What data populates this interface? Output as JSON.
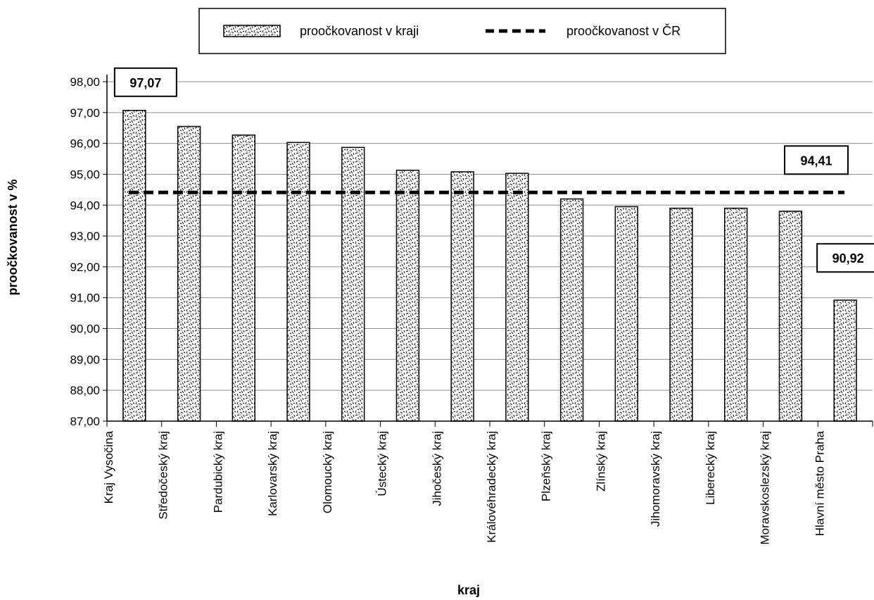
{
  "chart_data": {
    "type": "bar",
    "title": "",
    "xlabel": "kraj",
    "ylabel": "proočkovanost v %",
    "ylim": [
      87,
      98
    ],
    "ytick_step": 1,
    "ytick_format": "comma-2dp",
    "grid": true,
    "legend_position": "top-center",
    "categories": [
      "Kraj Vysočina",
      "Středočeský kraj",
      "Pardubický kraj",
      "Karlovarský kraj",
      "Olomoucký kraj",
      "Ústecký kraj",
      "Jihočeský kraj",
      "Královéhradecký kraj",
      "Plzeňský kraj",
      "Zlínský kraj",
      "Jihomoravský kraj",
      "Liberecký kraj",
      "Moravskoslezský kraj",
      "Hlavní město Praha"
    ],
    "series": [
      {
        "name": "proočkovanost v kraji",
        "kind": "bar",
        "values": [
          97.07,
          96.55,
          96.27,
          96.03,
          95.87,
          95.13,
          95.08,
          95.03,
          94.2,
          93.95,
          93.9,
          93.9,
          93.8,
          90.92
        ]
      },
      {
        "name": "proočkovanost v ČR",
        "kind": "reference-line",
        "value": 94.41
      }
    ],
    "annotations": [
      {
        "text": "97,07",
        "target": "Kraj Vysočina"
      },
      {
        "text": "94,41",
        "target": "proočkovanost v ČR"
      },
      {
        "text": "90,92",
        "target": "Hlavní město Praha"
      }
    ],
    "colors": {
      "bar_fill": "#ffffff",
      "bar_stroke": "#000000",
      "line": "#000000",
      "grid": "#8c8c8c"
    }
  }
}
